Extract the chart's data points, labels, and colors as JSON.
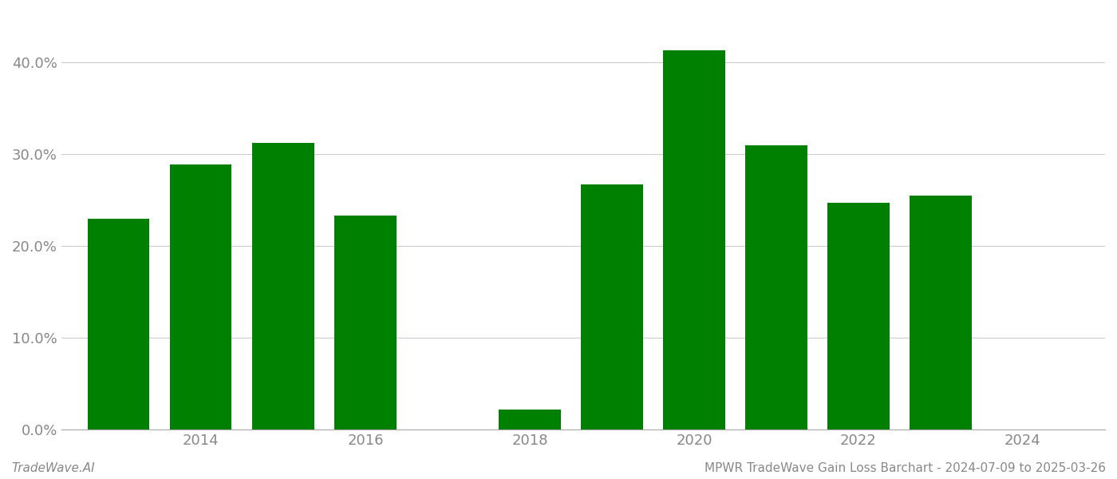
{
  "years": [
    2013,
    2014,
    2015,
    2016,
    2018,
    2019,
    2020,
    2021,
    2022,
    2023
  ],
  "values": [
    0.23,
    0.289,
    0.312,
    0.233,
    0.022,
    0.267,
    0.413,
    0.31,
    0.247,
    0.255
  ],
  "bar_color": "#008000",
  "background_color": "#ffffff",
  "ylim": [
    0,
    0.455
  ],
  "yticks": [
    0.0,
    0.1,
    0.2,
    0.3,
    0.4
  ],
  "xticks": [
    2014,
    2016,
    2018,
    2020,
    2022,
    2024
  ],
  "xlim": [
    2012.3,
    2025.0
  ],
  "bar_width": 0.75,
  "grid_color": "#cccccc",
  "tick_color": "#888888",
  "spine_color": "#aaaaaa",
  "footer_left": "TradeWave.AI",
  "footer_right": "MPWR TradeWave Gain Loss Barchart - 2024-07-09 to 2025-03-26",
  "footer_fontsize": 11,
  "tick_fontsize": 13
}
